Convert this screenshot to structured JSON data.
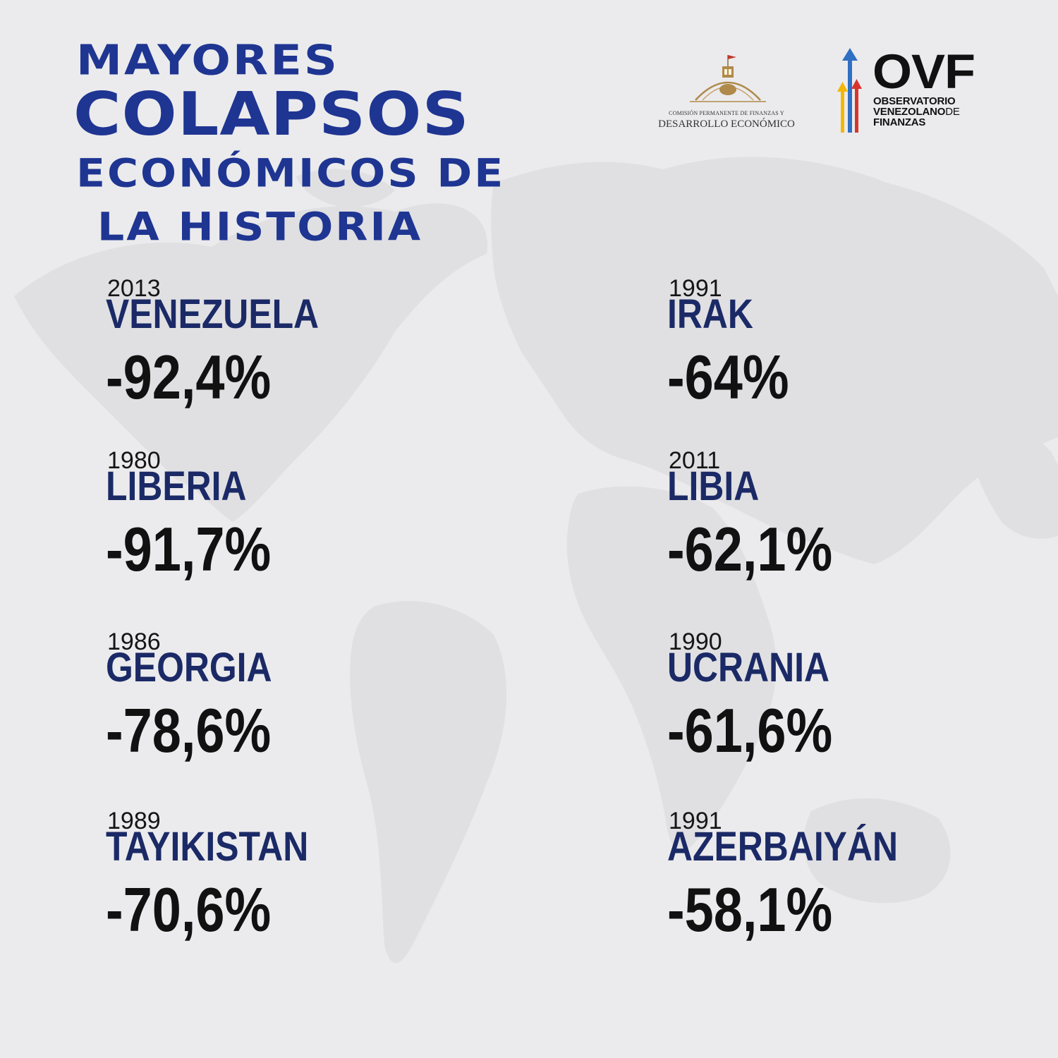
{
  "title": {
    "line1": "MAYORES",
    "line2": "COLAPSOS",
    "line3": "ECONÓMICOS DE",
    "line4": "LA HISTORIA"
  },
  "logos": {
    "commission_line1": "COMISIÓN PERMANENTE DE FINANZAS Y",
    "commission_line2": "DESARROLLO ECONÓMICO",
    "ovf_mark": "OVF",
    "ovf_line1": "OBSERVATORIO",
    "ovf_line2a": "VENEZOLANO",
    "ovf_line2b": "DE",
    "ovf_line3": "FINANZAS"
  },
  "colors": {
    "title": "#1f3592",
    "country": "#1b2a66",
    "value": "#111111",
    "background": "#ebebed",
    "ovf_arrow_blue": "#2f6fc4",
    "ovf_arrow_red": "#d9342b",
    "ovf_arrow_yellow": "#f2b705"
  },
  "left_column": [
    {
      "year": "2013",
      "country": "VENEZUELA",
      "value": "-92,4%"
    },
    {
      "year": "1980",
      "country": "LIBERIA",
      "value": "-91,7%"
    },
    {
      "year": "1986",
      "country": "GEORGIA",
      "value": "-78,6%"
    },
    {
      "year": "1989",
      "country": "TAYIKISTAN",
      "value": "-70,6%"
    }
  ],
  "right_column": [
    {
      "year": "1991",
      "country": "IRAK",
      "value": "-64%"
    },
    {
      "year": "2011",
      "country": "LIBIA",
      "value": "-62,1%"
    },
    {
      "year": "1990",
      "country": "UCRANIA",
      "value": "-61,6%"
    },
    {
      "year": "1991",
      "country": "AZERBAIYÁN",
      "value": "-58,1%"
    }
  ]
}
